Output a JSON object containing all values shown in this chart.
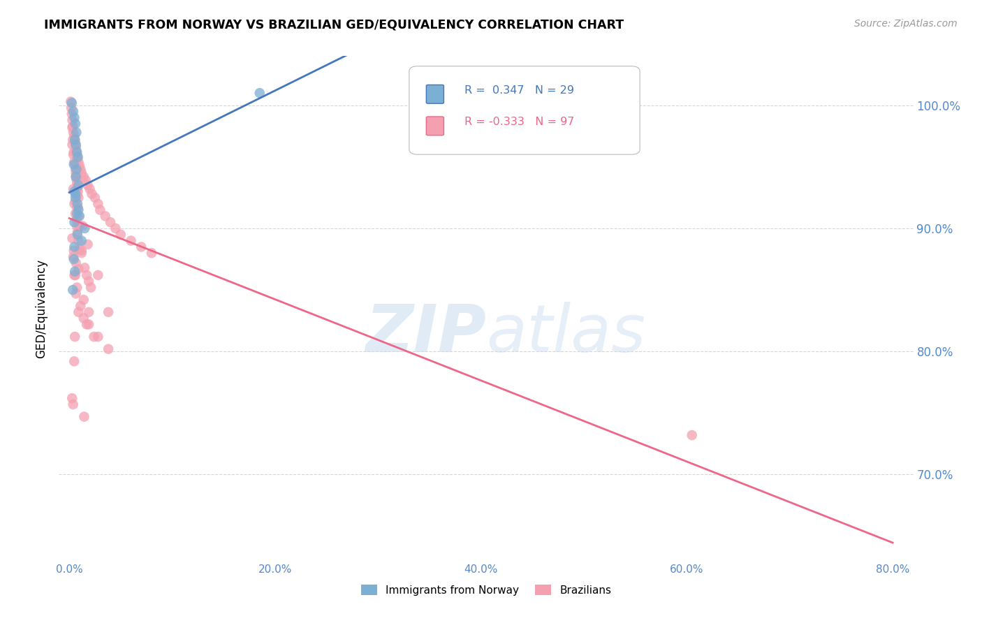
{
  "title": "IMMIGRANTS FROM NORWAY VS BRAZILIAN GED/EQUIVALENCY CORRELATION CHART",
  "source": "Source: ZipAtlas.com",
  "xlabel_ticks": [
    "0.0%",
    "20.0%",
    "40.0%",
    "60.0%",
    "80.0%"
  ],
  "xlabel_vals": [
    0.0,
    20.0,
    40.0,
    60.0,
    80.0
  ],
  "ylabel_ticks": [
    "70.0%",
    "80.0%",
    "90.0%",
    "100.0%"
  ],
  "ylabel_vals": [
    70.0,
    80.0,
    90.0,
    100.0
  ],
  "ylabel_label": "GED/Equivalency",
  "xlim": [
    -1.0,
    82.0
  ],
  "ylim": [
    63.0,
    104.0
  ],
  "legend1_r": "0.347",
  "legend1_n": "29",
  "legend2_r": "-0.333",
  "legend2_n": "97",
  "blue_color": "#7BAFD4",
  "pink_color": "#F4A0B0",
  "blue_line_color": "#4477BB",
  "pink_line_color": "#EE6688",
  "norway_x": [
    0.25,
    0.4,
    0.5,
    0.6,
    0.7,
    0.55,
    0.65,
    0.75,
    0.85,
    0.45,
    0.7,
    0.9,
    0.5,
    0.6,
    0.8,
    0.9,
    1.0,
    0.5,
    1.5,
    0.8,
    1.2,
    0.6,
    0.75,
    0.5,
    0.45,
    0.55,
    0.35,
    18.5,
    0.65
  ],
  "norway_y": [
    100.2,
    99.5,
    99.0,
    98.5,
    97.8,
    97.2,
    96.8,
    96.2,
    95.8,
    95.2,
    94.8,
    93.5,
    93.0,
    92.5,
    92.0,
    91.5,
    91.0,
    90.5,
    90.0,
    89.5,
    89.0,
    92.8,
    91.2,
    88.5,
    87.5,
    86.5,
    85.0,
    101.0,
    94.2
  ],
  "brazil_x": [
    0.15,
    0.2,
    0.25,
    0.3,
    0.35,
    0.4,
    0.5,
    0.55,
    0.6,
    0.65,
    0.7,
    0.75,
    0.8,
    0.9,
    1.0,
    1.1,
    1.2,
    1.4,
    1.6,
    1.8,
    2.0,
    2.2,
    2.5,
    2.8,
    3.0,
    3.5,
    4.0,
    4.5,
    5.0,
    6.0,
    7.0,
    8.0,
    0.3,
    0.4,
    0.5,
    0.6,
    0.65,
    0.7,
    0.75,
    0.8,
    0.85,
    0.9,
    0.5,
    0.6,
    0.7,
    0.75,
    0.8,
    0.9,
    1.0,
    1.2,
    1.5,
    1.7,
    1.9,
    2.1,
    0.4,
    0.6,
    0.75,
    0.9,
    1.3,
    1.8,
    2.8,
    3.8,
    0.3,
    0.45,
    0.65,
    0.9,
    1.4,
    1.9,
    0.4,
    0.6,
    0.75,
    1.1,
    1.7,
    2.4,
    0.5,
    0.65,
    0.9,
    1.4,
    1.9,
    2.8,
    3.8,
    0.3,
    0.35,
    0.45,
    0.55,
    0.65,
    0.75,
    0.85,
    1.0,
    1.2,
    60.5,
    0.28,
    0.48,
    0.38,
    0.55,
    1.45,
    0.78
  ],
  "brazil_y": [
    100.3,
    99.8,
    99.3,
    98.8,
    98.3,
    97.8,
    97.5,
    97.2,
    96.9,
    96.6,
    96.3,
    96.0,
    95.7,
    95.4,
    95.1,
    94.8,
    94.5,
    94.2,
    93.9,
    93.5,
    93.2,
    92.8,
    92.5,
    92.0,
    91.5,
    91.0,
    90.5,
    90.0,
    89.5,
    89.0,
    88.5,
    88.0,
    96.8,
    96.0,
    95.4,
    94.8,
    94.5,
    94.0,
    93.7,
    93.3,
    93.0,
    92.5,
    92.0,
    91.2,
    90.7,
    90.2,
    89.7,
    89.0,
    88.3,
    88.0,
    86.8,
    86.2,
    85.7,
    85.2,
    93.2,
    92.2,
    91.7,
    91.0,
    90.2,
    88.7,
    86.2,
    83.2,
    89.2,
    88.2,
    87.2,
    86.7,
    84.2,
    83.2,
    87.7,
    86.2,
    85.2,
    83.7,
    82.2,
    81.2,
    86.2,
    84.7,
    83.2,
    82.7,
    82.2,
    81.2,
    80.2,
    98.2,
    97.2,
    96.2,
    95.2,
    94.2,
    93.2,
    91.7,
    90.2,
    88.2,
    73.2,
    76.2,
    79.2,
    75.7,
    81.2,
    74.7,
    92.7
  ],
  "watermark_zip": "ZIP",
  "watermark_atlas": "atlas",
  "background_color": "#FFFFFF"
}
